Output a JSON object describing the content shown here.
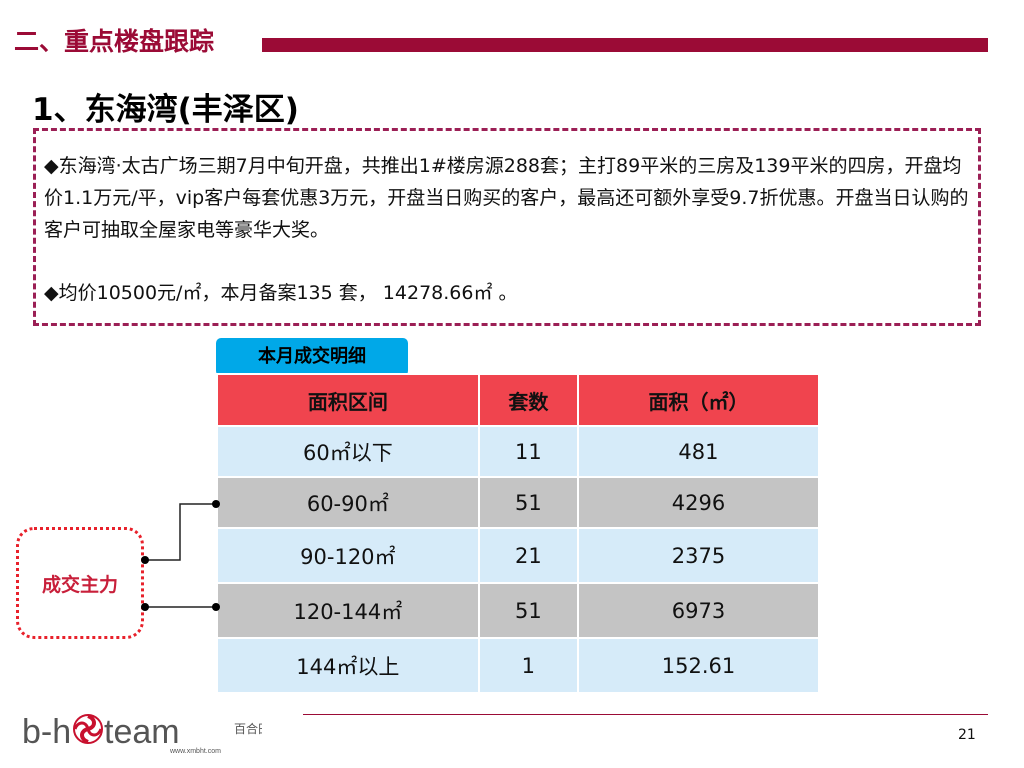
{
  "header": {
    "section_title": "二、重点楼盘跟踪",
    "subtitle": "1、东海湾(丰泽区)"
  },
  "info": {
    "paragraph1": "◆东海湾·太古广场三期7月中旬开盘，共推出1#楼房源288套；主打89平米的三房及139平米的四房，开盘均价1.1万元/平，vip客户每套优惠3万元，开盘当日购买的客户，最高还可额外享受9.7折优惠。开盘当日认购的客户可抽取全屋家电等豪华大奖。",
    "paragraph2": "◆均价10500元/㎡，本月备案135 套， 14278.66㎡ 。"
  },
  "table": {
    "title": "本月成交明细",
    "headers": [
      "面积区间",
      "套数",
      "面积（㎡）"
    ],
    "rows": [
      [
        "60㎡以下",
        "11",
        "481"
      ],
      [
        "60-90㎡",
        "51",
        "4296"
      ],
      [
        "90-120㎡",
        "21",
        "2375"
      ],
      [
        "120-144㎡",
        "51",
        "6973"
      ],
      [
        "144㎡以上",
        "1",
        "152.61"
      ]
    ]
  },
  "annotation": {
    "label": "成交主力"
  },
  "footer": {
    "logo_text": "b-hoteam",
    "logo_cn": "百合田",
    "logo_url_text": "www.xmbht.com",
    "page_number": "21"
  },
  "colors": {
    "brand": "#9b0b36",
    "header_red": "#f0444e",
    "row_blue": "#d6ebf9",
    "row_gray": "#c4c4c4",
    "title_blue": "#00a8e8"
  }
}
